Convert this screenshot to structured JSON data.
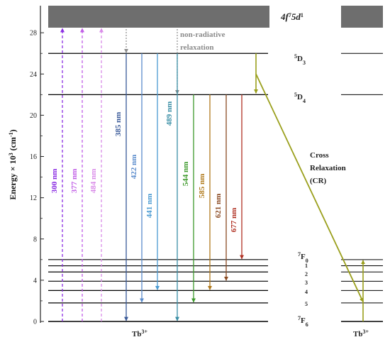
{
  "title": "",
  "colors": {
    "band": "#6e6e6e",
    "level": "#000000",
    "nonrad": "#8c8c8c",
    "cr": "#9a9f1c",
    "axis": "#222222"
  },
  "axis": {
    "label_main": "Energy × 10",
    "label_sup": "3",
    "label_unit": " (cm",
    "label_unit_sup": "-1",
    "label_end": ")",
    "min": 0,
    "max": 30,
    "ticks": [
      "0",
      "4",
      "8",
      "12",
      "16",
      "20",
      "24",
      "28"
    ],
    "tick_values": [
      0,
      4,
      8,
      12,
      16,
      20,
      24,
      28
    ]
  },
  "levels": {
    "band_label_a": "4f",
    "band_label_a_sup": "7",
    "band_label_b": "5d",
    "band_label_b_sup": "1",
    "d3_sup": "5",
    "d3_main": "D",
    "d3_sub": "3",
    "d4_sup": "5",
    "d4_main": "D",
    "d4_sub": "4",
    "f0_sup": "7",
    "f0_main": "F",
    "f0_sub": "0",
    "f6_sup": "7",
    "f6_main": "F",
    "f6_sub": "6",
    "j_labels": [
      "1",
      "2",
      "3",
      "4",
      "5"
    ],
    "d3_energy": 26,
    "d4_energy": 22,
    "f_energies": [
      6,
      5.4,
      4.8,
      3.9,
      3.0,
      1.8,
      0
    ]
  },
  "excitation": [
    {
      "label": "300 nm",
      "color": "#8a2be2"
    },
    {
      "label": "377 nm",
      "color": "#c05ce6"
    },
    {
      "label": "484 nm",
      "color": "#d98be8"
    }
  ],
  "emission": [
    {
      "label": "385 nm",
      "color": "#3a5a99",
      "to": 0
    },
    {
      "label": "422 nm",
      "color": "#5b8ccc"
    },
    {
      "label": "441 nm",
      "color": "#4a9ad2"
    },
    {
      "label": "489 nm",
      "color": "#3b8fa6"
    },
    {
      "label": "544 nm",
      "color": "#3e9a2c"
    },
    {
      "label": "585 nm",
      "color": "#b07a1c"
    },
    {
      "label": "621 nm",
      "color": "#8a4a22"
    },
    {
      "label": "677 nm",
      "color": "#b03022"
    }
  ],
  "annotations": {
    "nonrad_line1": "non-radiative",
    "nonrad_line2": "relaxation",
    "cr_line1": "Cross",
    "cr_line2": "Relaxation",
    "cr_line3": "(CR)",
    "ion_main": "Tb",
    "ion_sup": "3+"
  }
}
